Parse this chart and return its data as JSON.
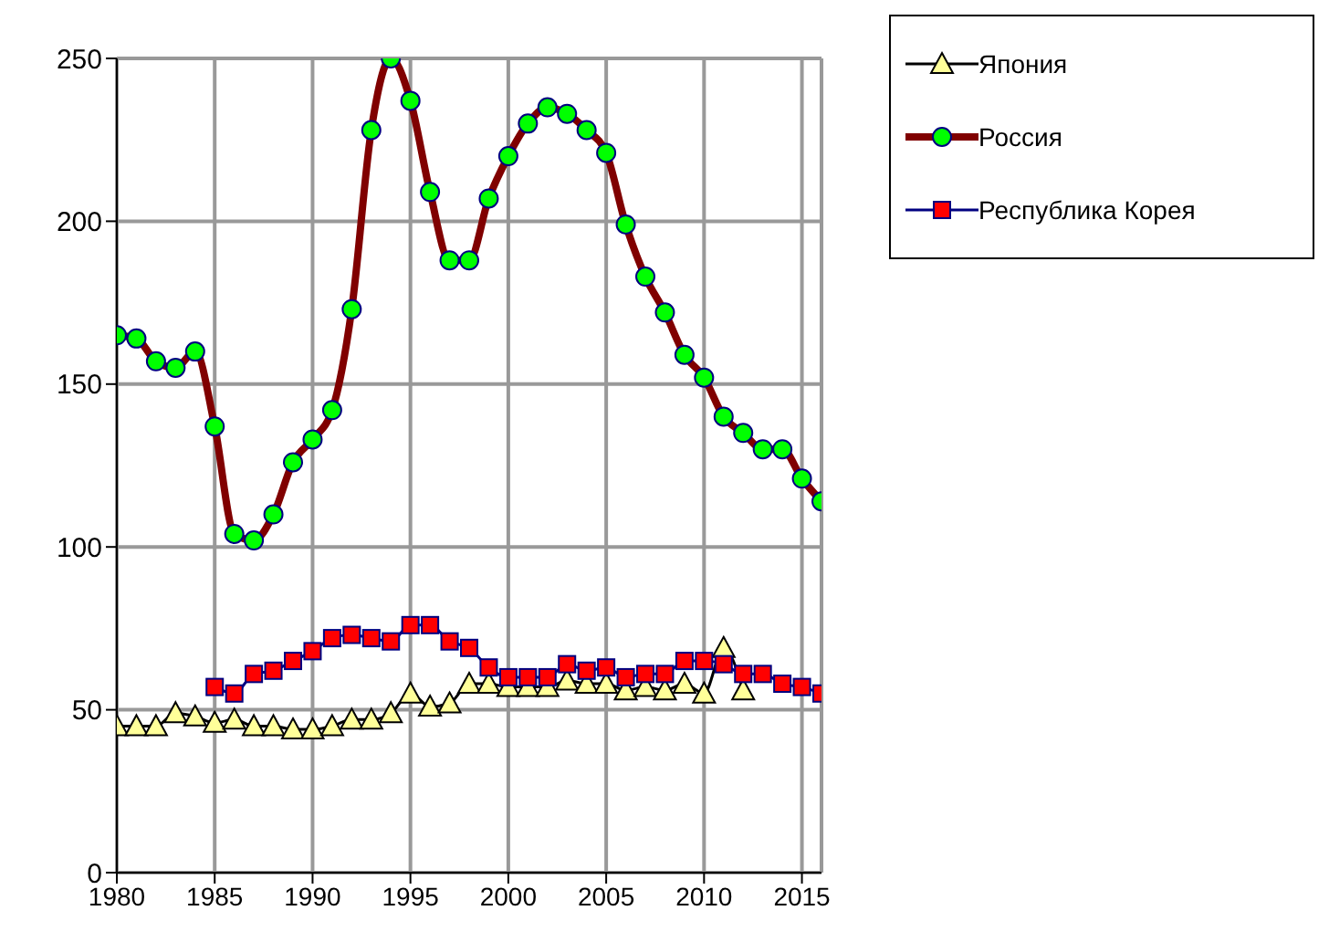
{
  "chart_data": {
    "type": "line",
    "x": [
      1980,
      1981,
      1982,
      1983,
      1984,
      1985,
      1986,
      1987,
      1988,
      1989,
      1990,
      1991,
      1992,
      1993,
      1994,
      1995,
      1996,
      1997,
      1998,
      1999,
      2000,
      2001,
      2002,
      2003,
      2004,
      2005,
      2006,
      2007,
      2008,
      2009,
      2010,
      2011,
      2012,
      2013,
      2014,
      2015,
      2016
    ],
    "series": [
      {
        "name": "Япония",
        "color": "#ffff99",
        "marker": "triangle",
        "values": [
          45,
          45,
          45,
          49,
          48,
          46,
          47,
          45,
          45,
          44,
          44,
          45,
          47,
          47,
          49,
          55,
          51,
          52,
          58,
          58,
          57,
          57,
          57,
          59,
          58,
          58,
          56,
          57,
          56,
          58,
          55,
          69,
          56,
          null,
          null,
          null,
          null
        ]
      },
      {
        "name": "Россия",
        "color": "#800000",
        "marker": "circle",
        "values": [
          165,
          164,
          157,
          155,
          160,
          137,
          104,
          102,
          110,
          126,
          133,
          142,
          173,
          228,
          250,
          237,
          209,
          188,
          188,
          207,
          220,
          230,
          235,
          233,
          228,
          221,
          199,
          183,
          172,
          159,
          152,
          140,
          135,
          130,
          130,
          121,
          114
        ]
      },
      {
        "name": "Республика Корея",
        "color": "#ff0000",
        "marker": "square",
        "values": [
          null,
          null,
          null,
          null,
          null,
          57,
          55,
          61,
          62,
          65,
          68,
          72,
          73,
          72,
          71,
          76,
          76,
          71,
          69,
          63,
          60,
          60,
          60,
          64,
          62,
          63,
          60,
          61,
          61,
          65,
          65,
          64,
          61,
          61,
          58,
          57,
          55
        ]
      }
    ],
    "xlim": [
      1980,
      2016
    ],
    "xticks": [
      1980,
      1985,
      1990,
      1995,
      2000,
      2005,
      2010,
      2015
    ],
    "ylim": [
      0,
      250
    ],
    "yticks": [
      0,
      50,
      100,
      150,
      200,
      250
    ],
    "grid": true,
    "legend": "top right",
    "line_style": "solid"
  }
}
